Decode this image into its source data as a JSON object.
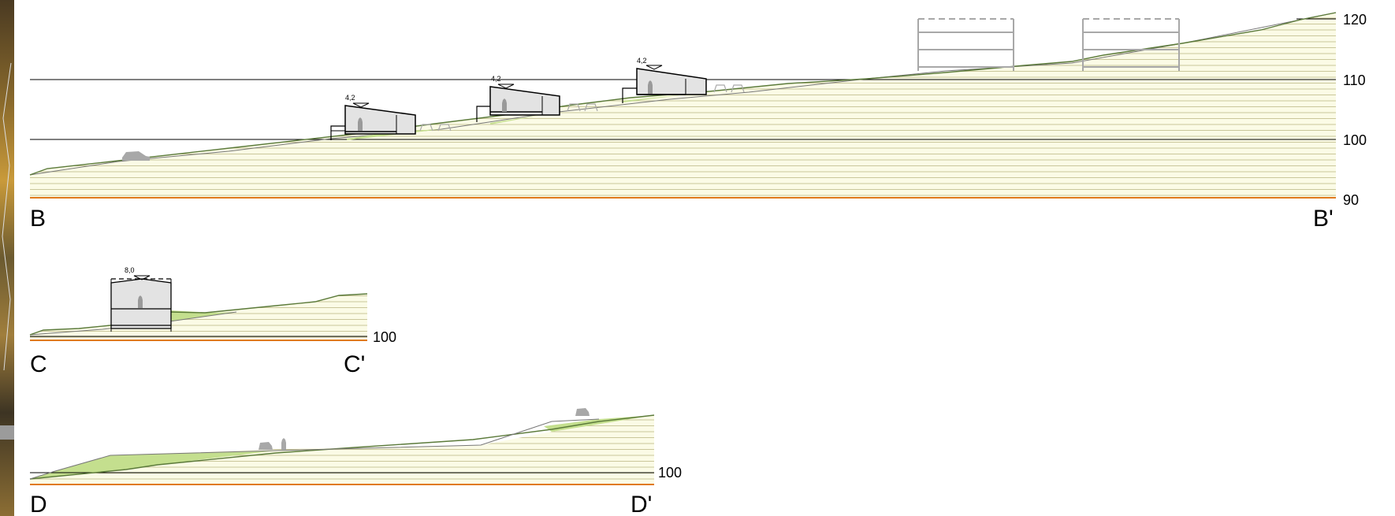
{
  "colors": {
    "hatch": "#c9c79a",
    "fill": "#fbfbe6",
    "base": "#e07a1e",
    "ground_line": "#5b7a3a",
    "cut_fill": "#c4df8e",
    "building": "#e3e3e3",
    "figure": "#9a9a9a",
    "ghost": "#a8a8a8"
  },
  "sections": {
    "bb": {
      "start": "B",
      "end": "B'",
      "levels": [
        "120",
        "110",
        "100",
        "90"
      ],
      "building_heights": [
        "4,2",
        "4,2",
        "4,2"
      ]
    },
    "cc": {
      "start": "C",
      "end": "C'",
      "levels": [
        "100"
      ],
      "building_heights": [
        "8,0"
      ]
    },
    "dd": {
      "start": "D",
      "end": "D'",
      "levels": [
        "100"
      ]
    }
  }
}
